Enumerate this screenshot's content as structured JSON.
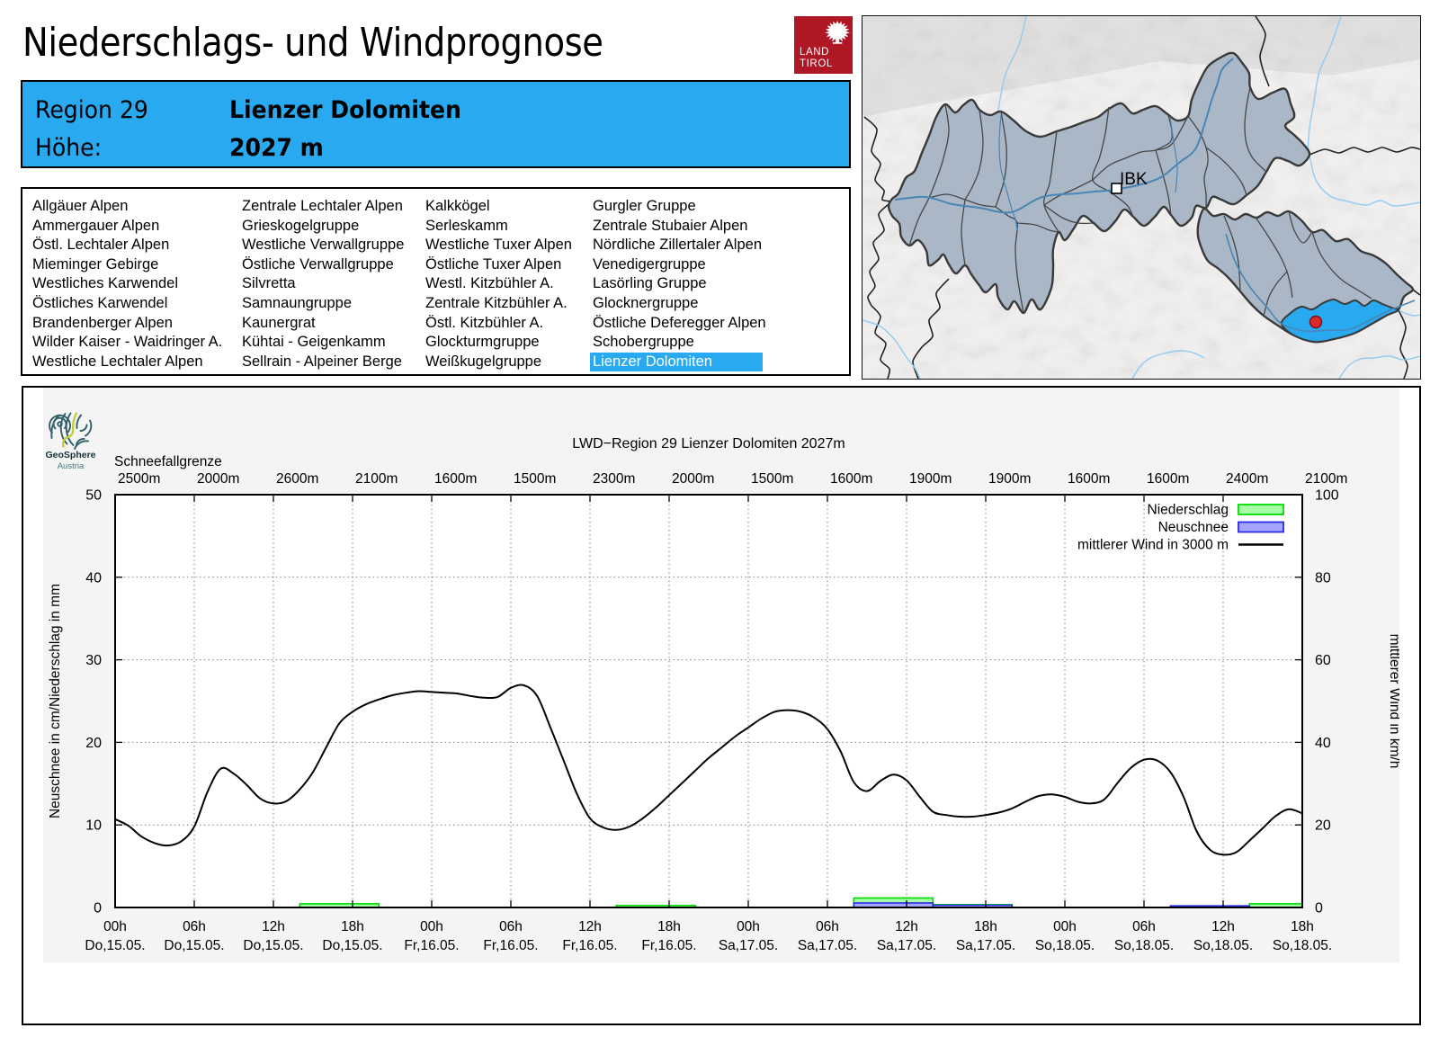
{
  "header": {
    "title": "Niederschlags- und Windprognose",
    "logo": {
      "line1": "LAND",
      "line2": "TIROL",
      "background": "#B01724"
    }
  },
  "region_banner": {
    "background": "#29A9F0",
    "region_label": "Region 29",
    "region_name": "Lienzer Dolomiten",
    "altitude_label": "Höhe:",
    "altitude_value": "2027 m"
  },
  "region_list": {
    "selected": "Lienzer Dolomiten",
    "highlight_color": "#29A9F0",
    "columns": [
      [
        "Allgäuer Alpen",
        "Ammergauer Alpen",
        "Östl. Lechtaler Alpen",
        "Mieminger Gebirge",
        "Westliches Karwendel",
        "Östliches Karwendel",
        "Brandenberger Alpen",
        "Wilder Kaiser - Waidringer A.",
        "Westliche Lechtaler Alpen"
      ],
      [
        "Zentrale Lechtaler Alpen",
        "Grieskogelgruppe",
        "Westliche Verwallgruppe",
        "Östliche Verwallgruppe",
        "Silvretta",
        "Samnaungruppe",
        "Kaunergrat",
        "Kühtai - Geigenkamm",
        "Sellrain - Alpeiner Berge"
      ],
      [
        "Kalkkögel",
        "Serleskamm",
        "Westliche Tuxer Alpen",
        "Östliche Tuxer Alpen",
        "Westl. Kitzbühler A.",
        "Zentrale Kitzbühler A.",
        "Östl. Kitzbühler A.",
        "Glockturmgruppe",
        "Weißkugelgruppe"
      ],
      [
        "Gurgler Gruppe",
        "Zentrale Stubaier Alpen",
        "Nördliche Zillertaler Alpen",
        "Venedigergruppe",
        "Lasörling Gruppe",
        "Glocknergruppe",
        "Östliche Deferegger Alpen",
        "Schobergruppe",
        "Lienzer Dolomiten"
      ]
    ]
  },
  "map": {
    "city_label": "IBK",
    "highlight_color": "#29A9F0",
    "marker_color": "#DC2A2A"
  },
  "geosphere_logo": {
    "name": "GeoSphere",
    "country": "Austria"
  },
  "chart_data": {
    "type": "line+bar",
    "title": "LWD−Region 29 Lienzer Dolomiten 2027m",
    "snowline_label": "Schneefallgrenze",
    "snowline_values": [
      "2500m",
      "2000m",
      "2600m",
      "2100m",
      "1600m",
      "1500m",
      "2300m",
      "2000m",
      "1500m",
      "1600m",
      "1900m",
      "1900m",
      "1600m",
      "1600m",
      "2400m",
      "2100m"
    ],
    "x_tick_hours": [
      "00h",
      "06h",
      "12h",
      "18h",
      "00h",
      "06h",
      "12h",
      "18h",
      "00h",
      "06h",
      "12h",
      "18h",
      "00h",
      "06h",
      "12h",
      "18h"
    ],
    "x_tick_dates": [
      "Do,15.05.",
      "Do,15.05.",
      "Do,15.05.",
      "Do,15.05.",
      "Fr,16.05.",
      "Fr,16.05.",
      "Fr,16.05.",
      "Fr,16.05.",
      "Sa,17.05.",
      "Sa,17.05.",
      "Sa,17.05.",
      "Sa,17.05.",
      "So,18.05.",
      "So,18.05.",
      "So,18.05.",
      "So,18.05."
    ],
    "ylabel": "Neuschnee in cm/Niederschlag in mm",
    "y2label": "mittlerer Wind in km/h",
    "ylim": [
      0,
      50
    ],
    "y2lim": [
      0,
      100
    ],
    "y_ticks": [
      0,
      10,
      20,
      30,
      40,
      50
    ],
    "y2_ticks": [
      0,
      20,
      40,
      60,
      80,
      100
    ],
    "hours_span": 90,
    "legend": [
      {
        "label": "Niederschlag",
        "fill": "#A6FFA6",
        "border": "#00DC00",
        "kind": "box"
      },
      {
        "label": "Neuschnee",
        "fill": "#A6A6FF",
        "border": "#2A2AE8",
        "kind": "box"
      },
      {
        "label": "mittlerer Wind in 3000 m",
        "color": "#000000",
        "kind": "line"
      }
    ],
    "wind_kmh": [
      21.4,
      19.8,
      17.2,
      15.6,
      15.0,
      16.0,
      19.6,
      28.0,
      33.6,
      32.4,
      29.6,
      26.4,
      25.2,
      25.8,
      28.6,
      32.8,
      38.8,
      44.6,
      47.4,
      49.2,
      50.4,
      51.4,
      52.0,
      52.4,
      52.2,
      52.0,
      51.8,
      51.2,
      50.8,
      51.0,
      53.2,
      53.8,
      51.2,
      43.6,
      35.6,
      27.6,
      21.6,
      19.4,
      18.8,
      19.6,
      21.6,
      24.2,
      27.2,
      30.2,
      33.2,
      36.2,
      38.8,
      41.4,
      43.6,
      45.8,
      47.4,
      47.8,
      47.4,
      46.0,
      43.2,
      37.8,
      30.4,
      28.2,
      30.6,
      32.2,
      30.8,
      26.8,
      23.2,
      22.4,
      22.0,
      22.0,
      22.4,
      23.0,
      24.0,
      25.6,
      27.0,
      27.4,
      26.8,
      25.6,
      25.2,
      26.2,
      30.2,
      33.8,
      35.8,
      35.6,
      32.8,
      26.8,
      18.4,
      14.0,
      12.8,
      13.4,
      16.2,
      19.2,
      22.2,
      23.8,
      22.8
    ],
    "precip_bars_mm": [
      {
        "from_h": 14,
        "to_h": 20,
        "value": 0.45
      },
      {
        "from_h": 38,
        "to_h": 44,
        "value": 0.25
      },
      {
        "from_h": 56,
        "to_h": 62,
        "value": 1.15
      },
      {
        "from_h": 62,
        "to_h": 68,
        "value": 0.35
      },
      {
        "from_h": 86,
        "to_h": 90,
        "value": 0.45
      }
    ],
    "snow_bars_cm": [
      {
        "from_h": 56,
        "to_h": 62,
        "value": 0.55
      },
      {
        "from_h": 62,
        "to_h": 68,
        "value": 0.28
      },
      {
        "from_h": 80,
        "to_h": 86,
        "value": 0.2
      }
    ]
  }
}
